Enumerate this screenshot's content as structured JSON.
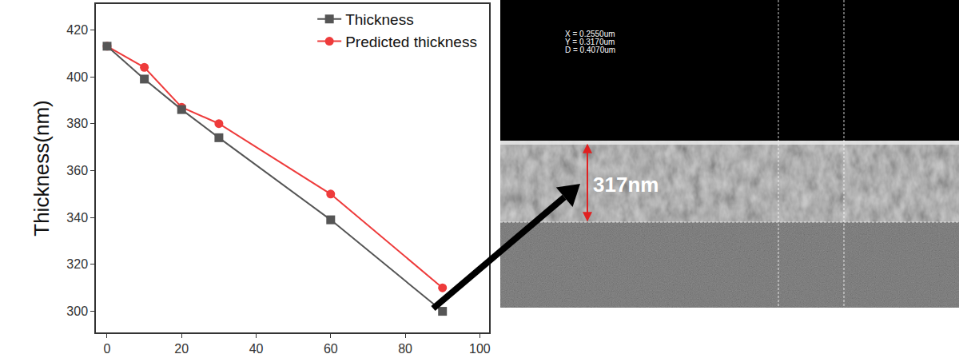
{
  "chart_data": {
    "type": "line",
    "y_label": "Thickness(nm)",
    "x": [
      0,
      10,
      20,
      30,
      60,
      90
    ],
    "series": [
      {
        "name": "Thickness",
        "color": "#555555",
        "marker": "square",
        "values": [
          413,
          399,
          386,
          374,
          339,
          300
        ]
      },
      {
        "name": "Predicted thickness",
        "color": "#ee3b3b",
        "marker": "circle",
        "values": [
          413,
          404,
          387,
          380,
          350,
          310
        ]
      }
    ],
    "xlim": [
      -3,
      102.5
    ],
    "xticks": [
      0,
      20,
      40,
      60,
      80,
      100
    ],
    "ylim": [
      291,
      431
    ],
    "yticks": [
      300,
      320,
      340,
      360,
      380,
      400,
      420
    ],
    "grid": false,
    "legend": "upper right"
  },
  "sem_image": {
    "measurements": [
      "X = 0.2550um",
      "Y = 0.3170um",
      "D = 0.4070um"
    ],
    "scale_label": "317nm"
  }
}
